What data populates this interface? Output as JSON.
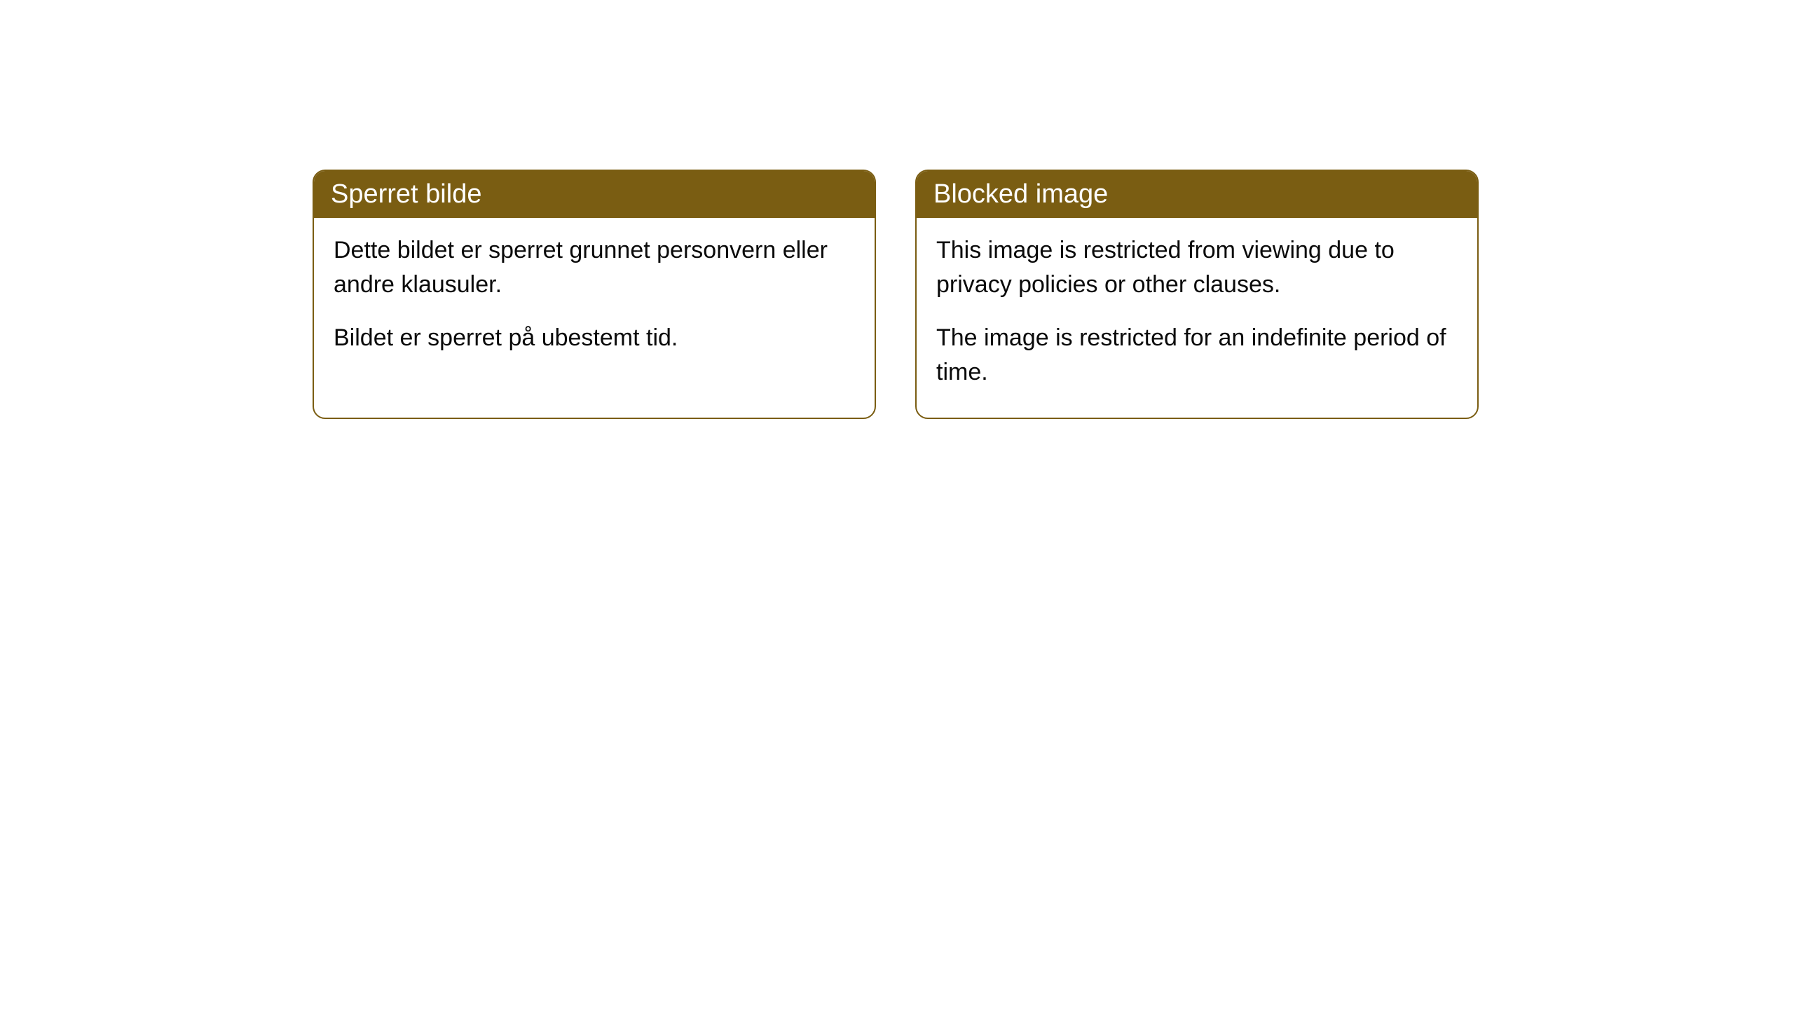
{
  "cards": [
    {
      "title": "Sperret bilde",
      "paragraph1": "Dette bildet er sperret grunnet personvern eller andre klausuler.",
      "paragraph2": "Bildet er sperret på ubestemt tid."
    },
    {
      "title": "Blocked image",
      "paragraph1": "This image is restricted from viewing due to privacy policies or other clauses.",
      "paragraph2": "The image is restricted for an indefinite period of time."
    }
  ],
  "style": {
    "header_bg": "#7a5d12",
    "header_text_color": "#ffffff",
    "border_color": "#7a5d12",
    "body_bg": "#ffffff",
    "body_text_color": "#0a0a0a",
    "border_radius": 18,
    "title_fontsize": 38,
    "body_fontsize": 34
  }
}
